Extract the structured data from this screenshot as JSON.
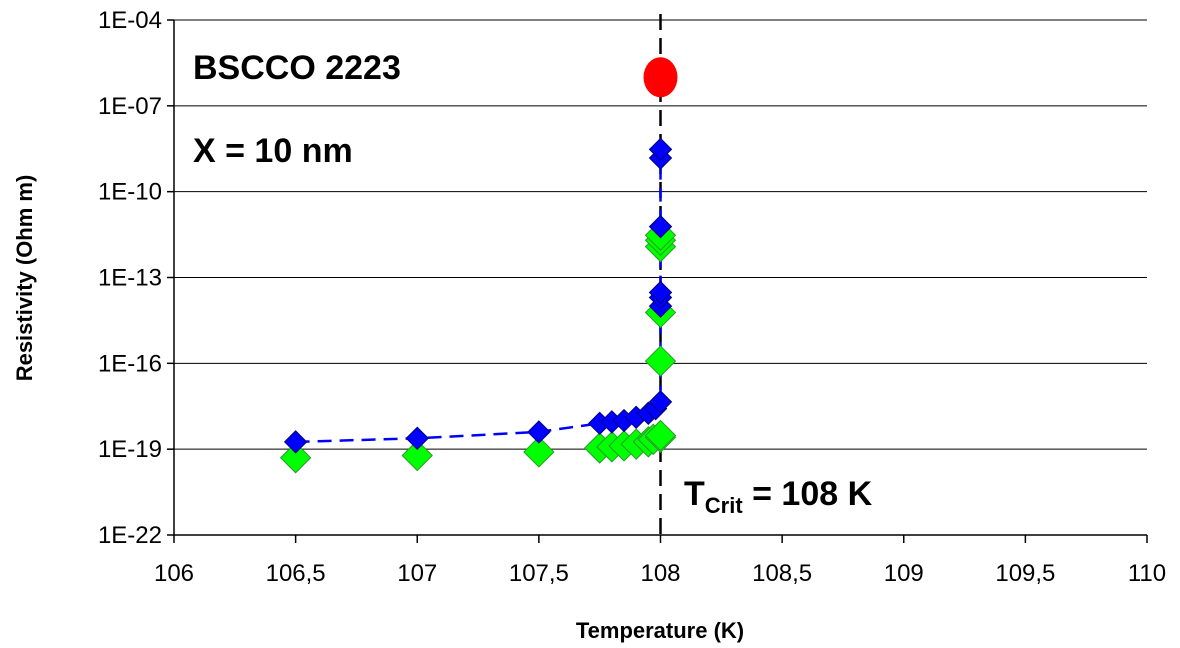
{
  "chart_data": {
    "type": "scatter",
    "xlabel": "Temperature (K)",
    "ylabel": "Resistivity (Ohm m)",
    "xlim": [
      106,
      110
    ],
    "ylim": [
      1e-22,
      0.0001
    ],
    "y_scale": "log",
    "x_ticks": [
      106,
      106.5,
      107,
      107.5,
      108,
      108.5,
      109,
      109.5,
      110
    ],
    "x_tick_labels": [
      "106",
      "106,5",
      "107",
      "107,5",
      "108",
      "108,5",
      "109",
      "109,5",
      "110"
    ],
    "y_ticks": [
      1e-22,
      1e-19,
      1e-16,
      1e-13,
      1e-10,
      1e-07,
      0.0001
    ],
    "y_tick_labels": [
      "1E-22",
      "1E-19",
      "1E-16",
      "1E-13",
      "1E-10",
      "1E-07",
      "1E-04"
    ],
    "grid": "horizontal",
    "annotations": {
      "material": "BSCCO 2223",
      "thickness": "X = 10 nm",
      "tcrit_prefix": "T",
      "tcrit_sub": "Crit",
      "tcrit_suffix": " = 108 K"
    },
    "vline_x": 108,
    "series": [
      {
        "color": "#00ff00",
        "marker": "diamond",
        "line": "none",
        "points": [
          [
            106.5,
            5e-20
          ],
          [
            107.0,
            6e-20
          ],
          [
            107.5,
            8e-20
          ],
          [
            107.75,
            1.1e-19
          ],
          [
            107.8,
            1.2e-19
          ],
          [
            107.85,
            1.3e-19
          ],
          [
            107.9,
            1.5e-19
          ],
          [
            107.95,
            1.8e-19
          ],
          [
            107.97,
            2.2e-19
          ],
          [
            108.0,
            2.6e-19
          ],
          [
            108.0,
            3e-19
          ],
          [
            108.0,
            1.2e-16
          ],
          [
            108.0,
            6e-15
          ],
          [
            108.0,
            1.2e-12
          ],
          [
            108.0,
            2e-12
          ],
          [
            108.0,
            3e-12
          ]
        ]
      },
      {
        "color": "#0000ff",
        "marker": "diamond",
        "line": "dashed",
        "points": [
          [
            106.5,
            1.8e-19
          ],
          [
            107.0,
            2.4e-19
          ],
          [
            107.5,
            4e-19
          ],
          [
            107.75,
            8e-19
          ],
          [
            107.8,
            9e-19
          ],
          [
            107.85,
            1e-18
          ],
          [
            107.9,
            1.3e-18
          ],
          [
            107.95,
            1.8e-18
          ],
          [
            107.98,
            2.6e-18
          ],
          [
            108.0,
            4.5e-18
          ],
          [
            108.0,
            1e-14
          ],
          [
            108.0,
            2e-14
          ],
          [
            108.0,
            3e-14
          ],
          [
            108.0,
            6e-12
          ],
          [
            108.0,
            1.5e-09
          ],
          [
            108.0,
            3e-09
          ]
        ]
      },
      {
        "color": "#ff0000",
        "marker": "circle",
        "line": "none",
        "points": [
          [
            108.0,
            1e-06
          ]
        ]
      }
    ]
  }
}
